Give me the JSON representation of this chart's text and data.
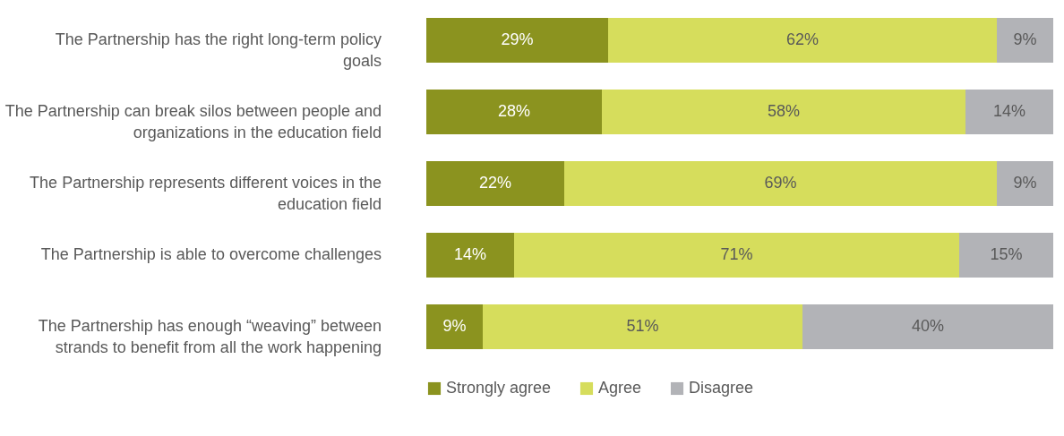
{
  "chart_data": {
    "type": "bar",
    "orientation": "horizontal",
    "stacked": true,
    "legend": "bottom",
    "categories": [
      "The Partnership has the right long-term policy goals",
      "The Partnership can break silos between people and organizations in the education field",
      "The Partnership represents different voices in the education field",
      "The Partnership is able to overcome challenges",
      "The Partnership has enough “weaving” between strands to benefit from all the work happening"
    ],
    "series": [
      {
        "name": "Strongly agree",
        "color": "#8b931f",
        "values": [
          29,
          28,
          22,
          14,
          9
        ],
        "value_labels": [
          "29%",
          "28%",
          "22%",
          "14%",
          "9%"
        ]
      },
      {
        "name": "Agree",
        "color": "#d6dd5c",
        "values": [
          62,
          58,
          69,
          71,
          51
        ],
        "value_labels": [
          "62%",
          "58%",
          "69%",
          "71%",
          "51%"
        ]
      },
      {
        "name": "Disagree",
        "color": "#b2b3b7",
        "values": [
          9,
          14,
          9,
          15,
          40
        ],
        "value_labels": [
          "9%",
          "14%",
          "9%",
          "15%",
          "40%"
        ]
      }
    ]
  }
}
